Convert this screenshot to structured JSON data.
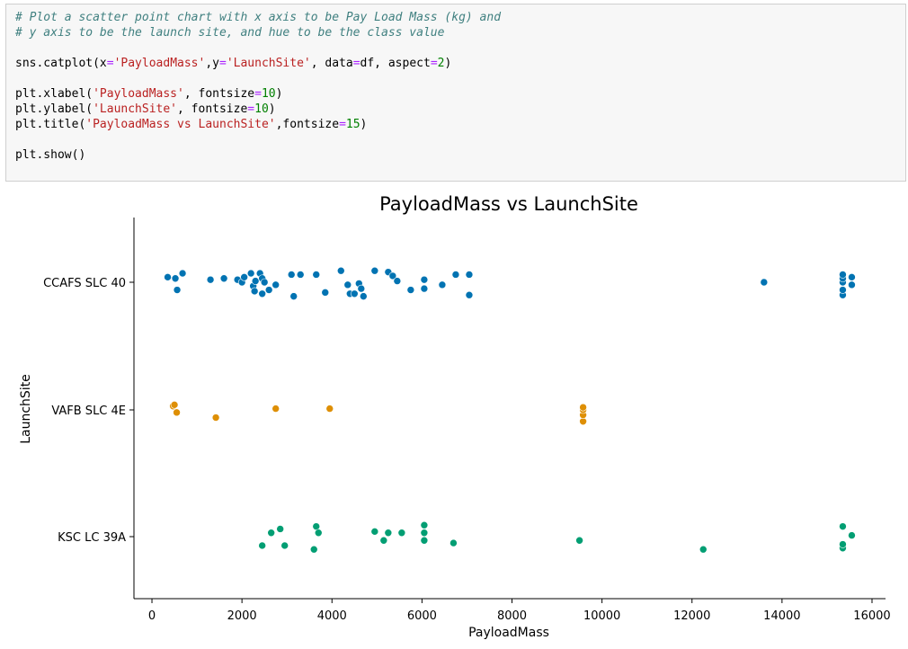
{
  "code_cell": {
    "lines": [
      [
        {
          "t": "# Plot a scatter point chart with x axis to be Pay Load Mass (kg) and",
          "c": "comment"
        }
      ],
      [
        {
          "t": "# y axis to be the launch site, and hue to be the class value",
          "c": "comment"
        }
      ],
      [],
      [
        {
          "t": "sns.catplot(x"
        },
        {
          "t": "=",
          "c": "op"
        },
        {
          "t": "'PayloadMass'",
          "c": "str"
        },
        {
          "t": ",y"
        },
        {
          "t": "=",
          "c": "op"
        },
        {
          "t": "'LaunchSite'",
          "c": "str"
        },
        {
          "t": ", data"
        },
        {
          "t": "=",
          "c": "op"
        },
        {
          "t": "df, aspect"
        },
        {
          "t": "=",
          "c": "op"
        },
        {
          "t": "2",
          "c": "num"
        },
        {
          "t": ")"
        }
      ],
      [],
      [
        {
          "t": "plt.xlabel("
        },
        {
          "t": "'PayloadMass'",
          "c": "str"
        },
        {
          "t": ", fontsize"
        },
        {
          "t": "=",
          "c": "op"
        },
        {
          "t": "10",
          "c": "num"
        },
        {
          "t": ")"
        }
      ],
      [
        {
          "t": "plt.ylabel("
        },
        {
          "t": "'LaunchSite'",
          "c": "str"
        },
        {
          "t": ", fontsize"
        },
        {
          "t": "=",
          "c": "op"
        },
        {
          "t": "10",
          "c": "num"
        },
        {
          "t": ")"
        }
      ],
      [
        {
          "t": "plt.title("
        },
        {
          "t": "'PayloadMass vs LaunchSite'",
          "c": "str"
        },
        {
          "t": ",fontsize"
        },
        {
          "t": "=",
          "c": "op"
        },
        {
          "t": "15",
          "c": "num"
        },
        {
          "t": ")"
        }
      ],
      [],
      [
        {
          "t": "plt.show()"
        }
      ]
    ]
  },
  "chart_data": {
    "type": "scatter",
    "title": "PayloadMass vs LaunchSite",
    "xlabel": "PayloadMass",
    "ylabel": "LaunchSite",
    "xlim": [
      -400,
      16300
    ],
    "xticks": [
      0,
      2000,
      4000,
      6000,
      8000,
      10000,
      12000,
      14000,
      16000
    ],
    "categories": [
      "CCAFS SLC 40",
      "VAFB SLC 4E",
      "KSC LC 39A"
    ],
    "grid": false,
    "legend": "none",
    "series": [
      {
        "category": "CCAFS SLC 40",
        "color": "#0173b2",
        "points": [
          {
            "x": 350,
            "y": -0.04
          },
          {
            "x": 520,
            "y": -0.03
          },
          {
            "x": 560,
            "y": 0.06
          },
          {
            "x": 680,
            "y": -0.07
          },
          {
            "x": 1300,
            "y": -0.02
          },
          {
            "x": 1600,
            "y": -0.03
          },
          {
            "x": 1900,
            "y": -0.02
          },
          {
            "x": 2000,
            "y": 0.0
          },
          {
            "x": 2050,
            "y": -0.04
          },
          {
            "x": 2200,
            "y": -0.07
          },
          {
            "x": 2250,
            "y": 0.03
          },
          {
            "x": 2280,
            "y": 0.07
          },
          {
            "x": 2300,
            "y": -0.01
          },
          {
            "x": 2400,
            "y": -0.07
          },
          {
            "x": 2450,
            "y": 0.09
          },
          {
            "x": 2450,
            "y": -0.03
          },
          {
            "x": 2500,
            "y": 0.0
          },
          {
            "x": 2600,
            "y": 0.06
          },
          {
            "x": 2750,
            "y": 0.02
          },
          {
            "x": 3100,
            "y": -0.06
          },
          {
            "x": 3150,
            "y": 0.11
          },
          {
            "x": 3300,
            "y": -0.06
          },
          {
            "x": 3650,
            "y": -0.06
          },
          {
            "x": 3850,
            "y": 0.08
          },
          {
            "x": 4200,
            "y": -0.09
          },
          {
            "x": 4350,
            "y": 0.02
          },
          {
            "x": 4400,
            "y": 0.09
          },
          {
            "x": 4500,
            "y": 0.09
          },
          {
            "x": 4600,
            "y": 0.01
          },
          {
            "x": 4650,
            "y": 0.05
          },
          {
            "x": 4700,
            "y": 0.11
          },
          {
            "x": 4950,
            "y": -0.09
          },
          {
            "x": 5250,
            "y": -0.08
          },
          {
            "x": 5350,
            "y": -0.05
          },
          {
            "x": 5450,
            "y": -0.01
          },
          {
            "x": 5750,
            "y": 0.06
          },
          {
            "x": 6050,
            "y": -0.02
          },
          {
            "x": 6050,
            "y": 0.05
          },
          {
            "x": 6450,
            "y": 0.02
          },
          {
            "x": 6750,
            "y": -0.06
          },
          {
            "x": 7050,
            "y": 0.1
          },
          {
            "x": 7050,
            "y": -0.06
          },
          {
            "x": 13600,
            "y": 0.0
          },
          {
            "x": 15350,
            "y": 0.1
          },
          {
            "x": 15350,
            "y": 0.06
          },
          {
            "x": 15350,
            "y": 0.0
          },
          {
            "x": 15350,
            "y": -0.03
          },
          {
            "x": 15350,
            "y": -0.06
          },
          {
            "x": 15550,
            "y": 0.02
          },
          {
            "x": 15550,
            "y": -0.04
          }
        ]
      },
      {
        "category": "VAFB SLC 4E",
        "color": "#de8f05",
        "points": [
          {
            "x": 470,
            "y": -0.03
          },
          {
            "x": 500,
            "y": -0.04
          },
          {
            "x": 550,
            "y": 0.02
          },
          {
            "x": 1420,
            "y": 0.06
          },
          {
            "x": 2750,
            "y": -0.01
          },
          {
            "x": 3950,
            "y": -0.01
          },
          {
            "x": 9580,
            "y": 0.09
          },
          {
            "x": 9580,
            "y": 0.04
          },
          {
            "x": 9580,
            "y": 0.0
          },
          {
            "x": 9580,
            "y": -0.02
          }
        ]
      },
      {
        "category": "KSC LC 39A",
        "color": "#029e73",
        "points": [
          {
            "x": 2450,
            "y": 0.07
          },
          {
            "x": 2650,
            "y": -0.03
          },
          {
            "x": 2850,
            "y": -0.06
          },
          {
            "x": 2950,
            "y": 0.07
          },
          {
            "x": 3600,
            "y": 0.1
          },
          {
            "x": 3650,
            "y": -0.08
          },
          {
            "x": 3700,
            "y": -0.03
          },
          {
            "x": 4950,
            "y": -0.04
          },
          {
            "x": 5150,
            "y": 0.03
          },
          {
            "x": 5250,
            "y": -0.03
          },
          {
            "x": 5550,
            "y": -0.03
          },
          {
            "x": 6050,
            "y": 0.03
          },
          {
            "x": 6050,
            "y": -0.03
          },
          {
            "x": 6050,
            "y": -0.09
          },
          {
            "x": 6700,
            "y": 0.05
          },
          {
            "x": 9500,
            "y": 0.03
          },
          {
            "x": 12250,
            "y": 0.1
          },
          {
            "x": 15350,
            "y": 0.09
          },
          {
            "x": 15350,
            "y": 0.06
          },
          {
            "x": 15350,
            "y": -0.08
          },
          {
            "x": 15550,
            "y": -0.01
          }
        ]
      }
    ]
  }
}
